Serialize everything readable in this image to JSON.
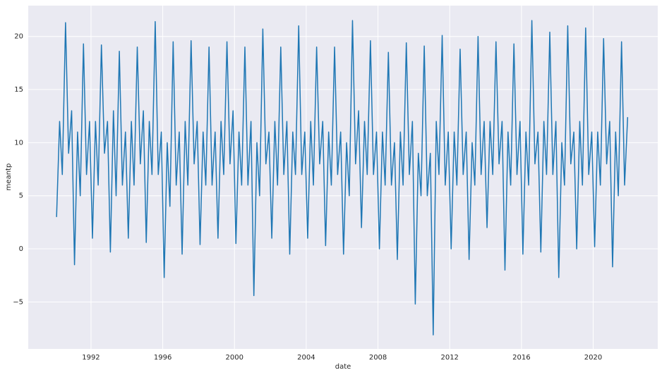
{
  "chart_data": {
    "type": "line",
    "xlabel": "date",
    "ylabel": "meantp",
    "color": "#1f77b4",
    "grid": true,
    "xlim": [
      1988.5,
      2023.6
    ],
    "ylim": [
      -9.42,
      22.9
    ],
    "xticks": [
      1992,
      1996,
      2000,
      2004,
      2008,
      2012,
      2016,
      2020
    ],
    "yticks": [
      {
        "value": -5,
        "label": "−5"
      },
      0,
      5,
      10,
      15,
      20
    ],
    "x": [
      1990.08,
      1990.25,
      1990.4,
      1990.58,
      1990.75,
      1990.92,
      1991.08,
      1991.25,
      1991.4,
      1991.58,
      1991.75,
      1991.92,
      1992.08,
      1992.25,
      1992.4,
      1992.58,
      1992.75,
      1992.92,
      1993.08,
      1993.25,
      1993.4,
      1993.58,
      1993.75,
      1993.92,
      1994.08,
      1994.25,
      1994.4,
      1994.58,
      1994.75,
      1994.92,
      1995.08,
      1995.25,
      1995.4,
      1995.58,
      1995.75,
      1995.92,
      1996.08,
      1996.25,
      1996.4,
      1996.58,
      1996.75,
      1996.92,
      1997.08,
      1997.25,
      1997.4,
      1997.58,
      1997.75,
      1997.92,
      1998.08,
      1998.25,
      1998.4,
      1998.58,
      1998.75,
      1998.92,
      1999.08,
      1999.25,
      1999.4,
      1999.58,
      1999.75,
      1999.92,
      2000.08,
      2000.25,
      2000.4,
      2000.58,
      2000.75,
      2000.92,
      2001.08,
      2001.25,
      2001.4,
      2001.58,
      2001.75,
      2001.92,
      2002.08,
      2002.25,
      2002.4,
      2002.58,
      2002.75,
      2002.92,
      2003.08,
      2003.25,
      2003.4,
      2003.58,
      2003.75,
      2003.92,
      2004.08,
      2004.25,
      2004.4,
      2004.58,
      2004.75,
      2004.92,
      2005.08,
      2005.25,
      2005.4,
      2005.58,
      2005.75,
      2005.92,
      2006.08,
      2006.25,
      2006.4,
      2006.58,
      2006.75,
      2006.92,
      2007.08,
      2007.25,
      2007.4,
      2007.58,
      2007.75,
      2007.92,
      2008.08,
      2008.25,
      2008.4,
      2008.58,
      2008.75,
      2008.92,
      2009.08,
      2009.25,
      2009.4,
      2009.58,
      2009.75,
      2009.92,
      2010.08,
      2010.25,
      2010.4,
      2010.58,
      2010.75,
      2010.92,
      2011.08,
      2011.25,
      2011.4,
      2011.58,
      2011.75,
      2011.92,
      2012.08,
      2012.25,
      2012.4,
      2012.58,
      2012.75,
      2012.92,
      2013.08,
      2013.25,
      2013.4,
      2013.58,
      2013.75,
      2013.92,
      2014.08,
      2014.25,
      2014.4,
      2014.58,
      2014.75,
      2014.92,
      2015.08,
      2015.25,
      2015.4,
      2015.58,
      2015.75,
      2015.92,
      2016.08,
      2016.25,
      2016.4,
      2016.58,
      2016.75,
      2016.92,
      2017.08,
      2017.25,
      2017.4,
      2017.58,
      2017.75,
      2017.92,
      2018.08,
      2018.25,
      2018.4,
      2018.58,
      2018.75,
      2018.92,
      2019.08,
      2019.25,
      2019.4,
      2019.58,
      2019.75,
      2019.92,
      2020.08,
      2020.25,
      2020.4,
      2020.58,
      2020.75,
      2020.92,
      2021.08,
      2021.25,
      2021.4,
      2021.58,
      2021.75,
      2021.92
    ],
    "values": [
      3,
      12,
      7,
      21.3,
      9,
      13,
      -1.5,
      11,
      5,
      19.3,
      7,
      12,
      1,
      12,
      6,
      19.2,
      9,
      12,
      -0.3,
      13,
      5,
      18.6,
      6,
      11,
      1,
      12,
      6,
      19,
      8,
      13,
      0.6,
      12,
      7,
      21.4,
      7,
      11,
      -2.7,
      10,
      4,
      19.5,
      6,
      11,
      -0.5,
      12,
      6,
      19.6,
      8,
      12,
      0.4,
      11,
      6,
      19,
      6,
      11,
      1,
      12,
      7,
      19.5,
      8,
      13,
      0.5,
      11,
      6,
      19,
      6,
      12,
      -4.4,
      10,
      5,
      20.7,
      8,
      11,
      1,
      12,
      6,
      19,
      7,
      12,
      -0.5,
      11,
      7,
      21,
      7,
      11,
      1,
      12,
      6,
      19,
      8,
      12,
      0.3,
      11,
      6,
      19,
      7,
      11,
      -0.5,
      10,
      5,
      21.5,
      8,
      13,
      2,
      12,
      7,
      19.6,
      7,
      11,
      0,
      11,
      6,
      18.5,
      6,
      10,
      -1,
      11,
      6,
      19.4,
      7,
      12,
      -5.2,
      9,
      5,
      19.1,
      5,
      9,
      -8.1,
      12,
      7,
      20.1,
      6,
      11,
      0,
      11,
      6,
      18.8,
      7,
      11,
      -1,
      10,
      6,
      20,
      7,
      12,
      2,
      12,
      7,
      19.5,
      8,
      12,
      -2,
      11,
      6,
      19.3,
      7,
      12,
      -0.5,
      11,
      6,
      21.5,
      8,
      11,
      -0.3,
      12,
      7,
      20.4,
      7,
      12,
      -2.7,
      10,
      6,
      21,
      8,
      11,
      0,
      12,
      6,
      20.8,
      7,
      11,
      0.2,
      11,
      6,
      19.8,
      8,
      12,
      -1.7,
      11,
      5,
      19.5,
      6,
      12.4
    ]
  }
}
